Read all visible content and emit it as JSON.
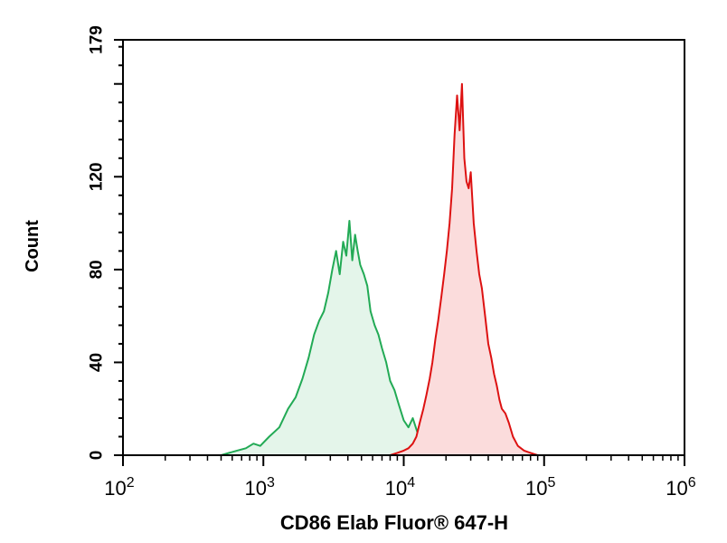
{
  "chart_data": {
    "type": "area",
    "xlabel": "CD86 Elab Fluor® 647-H",
    "ylabel": "Count",
    "x_scale": "log",
    "xlim": [
      100,
      1000000
    ],
    "ylim": [
      0,
      179
    ],
    "x_ticks": [
      {
        "base": "10",
        "exp": "2"
      },
      {
        "base": "10",
        "exp": "3"
      },
      {
        "base": "10",
        "exp": "4"
      },
      {
        "base": "10",
        "exp": "5"
      },
      {
        "base": "10",
        "exp": "6"
      }
    ],
    "y_ticks": [
      "0",
      "40",
      "80",
      "120",
      "179"
    ],
    "y_tick_values": [
      0,
      40,
      80,
      120,
      179
    ],
    "grid": false,
    "legend": "none",
    "series": [
      {
        "color": "#22aa55",
        "fill": "#e4f5ea",
        "x": [
          500,
          650,
          750,
          850,
          950,
          1100,
          1300,
          1500,
          1700,
          1900,
          2100,
          2300,
          2500,
          2700,
          2900,
          3100,
          3300,
          3500,
          3700,
          3900,
          4100,
          4300,
          4500,
          4700,
          4900,
          5200,
          5500,
          5800,
          6200,
          6600,
          7000,
          7500,
          8000,
          8600,
          9200,
          10000,
          10800,
          11600,
          12500,
          13500,
          14500,
          16000,
          18000,
          20000
        ],
        "y": [
          0,
          2,
          3,
          5,
          4,
          8,
          12,
          20,
          25,
          33,
          42,
          52,
          58,
          62,
          70,
          80,
          88,
          78,
          92,
          86,
          101,
          84,
          95,
          88,
          82,
          78,
          73,
          62,
          56,
          52,
          46,
          40,
          32,
          28,
          22,
          15,
          12,
          16,
          10,
          6,
          4,
          2,
          1,
          0
        ]
      },
      {
        "color": "#dd1111",
        "fill": "#fbdcdc",
        "x": [
          8000,
          9000,
          10000,
          10800,
          11600,
          12300,
          13000,
          13800,
          14500,
          15300,
          16000,
          16800,
          17600,
          18500,
          19400,
          20300,
          21200,
          22100,
          23000,
          24000,
          25000,
          26000,
          27000,
          28000,
          29000,
          30000,
          31500,
          33000,
          34500,
          36000,
          38000,
          40000,
          42000,
          44000,
          46000,
          48000,
          50000,
          53000,
          56000,
          60000,
          65000,
          72000,
          80000,
          90000
        ],
        "y": [
          0,
          1,
          2,
          3,
          5,
          8,
          14,
          20,
          26,
          33,
          40,
          50,
          58,
          68,
          78,
          88,
          100,
          115,
          138,
          155,
          140,
          160,
          128,
          118,
          115,
          122,
          100,
          88,
          78,
          72,
          60,
          48,
          42,
          35,
          30,
          24,
          20,
          18,
          14,
          8,
          4,
          2,
          1,
          0
        ]
      }
    ]
  }
}
